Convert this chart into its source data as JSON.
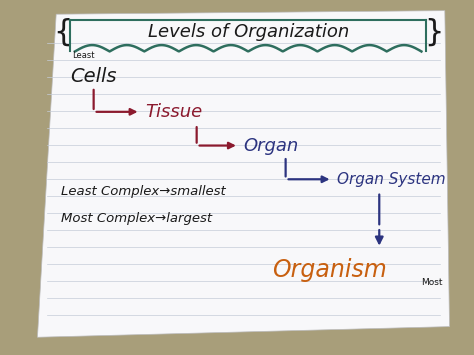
{
  "bg_color": "#a89e7a",
  "paper_color": "#f8f8fa",
  "paper_line_color": "#c5ccd8",
  "title": "{Levels of Organization}",
  "title_color": "#1a1a1a",
  "title_cloud_color": "#2e6e5e",
  "cells_label": "Cells",
  "cells_color": "#1a1a1a",
  "least_label": "Least",
  "tissue_label": "Tissue",
  "tissue_color": "#8b1a2e",
  "organ_label": "Organ",
  "organ_color": "#2c3480",
  "organ_system_label": "Organ System",
  "organ_system_color": "#2c3480",
  "organism_label": "Organism",
  "organism_color": "#c86010",
  "most_label": "Most",
  "most_color": "#1a1a1a",
  "note1": "Least Complex→smallest",
  "note2": "Most Complex→largest",
  "note_color": "#1a1a1a",
  "arrow_color_red": "#8b1a2e",
  "arrow_color_blue": "#2c3480"
}
